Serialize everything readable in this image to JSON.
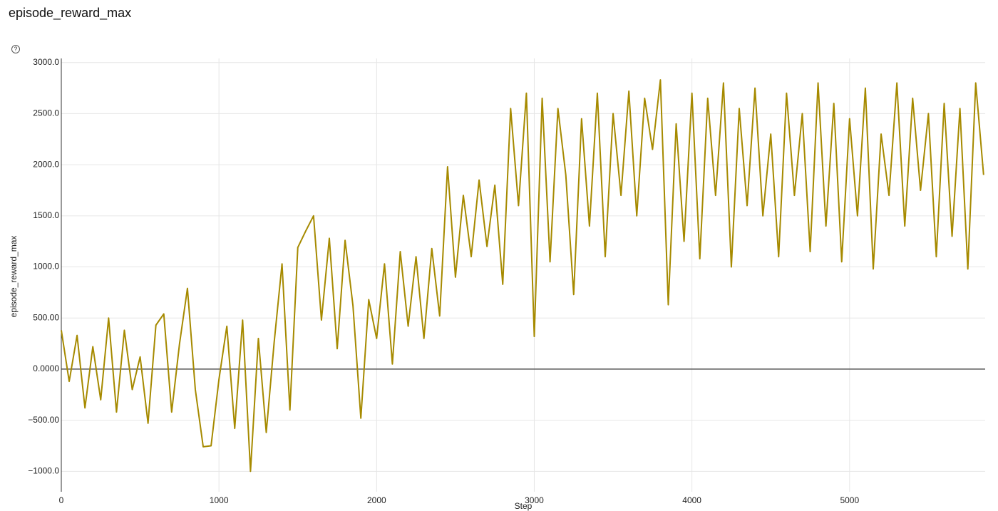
{
  "chart_data": {
    "type": "line",
    "title": "episode_reward_max",
    "x_label": "Step",
    "y_label": "episode_reward_max",
    "color": "#a68a00",
    "grid": true,
    "xlim": [
      0,
      5860
    ],
    "ylim": [
      -1200,
      3040
    ],
    "xticks": [
      0,
      1000,
      2000,
      3000,
      4000,
      5000
    ],
    "yticks": [
      {
        "value": 3000,
        "label": "3000.0"
      },
      {
        "value": 2500,
        "label": "2500.0"
      },
      {
        "value": 2000,
        "label": "2000.0"
      },
      {
        "value": 1500,
        "label": "1500.0"
      },
      {
        "value": 1000,
        "label": "1000.0"
      },
      {
        "value": 500,
        "label": "500.00"
      },
      {
        "value": 0,
        "label": "0.0000"
      },
      {
        "value": -500,
        "label": "−500.00"
      },
      {
        "value": -1000,
        "label": "−1000.0"
      }
    ],
    "x": [
      0,
      50,
      100,
      150,
      200,
      250,
      300,
      350,
      400,
      450,
      500,
      550,
      600,
      650,
      700,
      750,
      800,
      850,
      900,
      950,
      1000,
      1050,
      1100,
      1150,
      1200,
      1250,
      1300,
      1350,
      1400,
      1450,
      1500,
      1550,
      1600,
      1650,
      1700,
      1750,
      1800,
      1850,
      1900,
      1950,
      2000,
      2050,
      2100,
      2150,
      2200,
      2250,
      2300,
      2350,
      2400,
      2450,
      2500,
      2550,
      2600,
      2650,
      2700,
      2750,
      2800,
      2850,
      2900,
      2950,
      3000,
      3050,
      3100,
      3150,
      3200,
      3250,
      3300,
      3350,
      3400,
      3450,
      3500,
      3550,
      3600,
      3650,
      3700,
      3750,
      3800,
      3850,
      3900,
      3950,
      4000,
      4050,
      4100,
      4150,
      4200,
      4250,
      4300,
      4350,
      4400,
      4450,
      4500,
      4550,
      4600,
      4650,
      4700,
      4750,
      4800,
      4850,
      4900,
      4950,
      5000,
      5050,
      5100,
      5150,
      5200,
      5250,
      5300,
      5350,
      5400,
      5450,
      5500,
      5550,
      5600,
      5650,
      5700,
      5750,
      5800,
      5850
    ],
    "values": [
      380,
      -120,
      330,
      -380,
      220,
      -300,
      500,
      -420,
      380,
      -200,
      120,
      -530,
      430,
      540,
      -420,
      250,
      790,
      -200,
      -760,
      -750,
      -100,
      420,
      -580,
      480,
      -1000,
      300,
      -620,
      260,
      1030,
      -400,
      1190,
      1350,
      1500,
      480,
      1280,
      200,
      1260,
      620,
      -480,
      680,
      300,
      1030,
      50,
      1150,
      420,
      1100,
      300,
      1180,
      520,
      1980,
      900,
      1700,
      1100,
      1850,
      1200,
      1800,
      830,
      2550,
      1600,
      2700,
      320,
      2650,
      1050,
      2550,
      1900,
      730,
      2450,
      1400,
      2700,
      1100,
      2500,
      1700,
      2720,
      1500,
      2650,
      2150,
      2830,
      630,
      2400,
      1250,
      2700,
      1080,
      2650,
      1700,
      2800,
      1000,
      2550,
      1600,
      2750,
      1500,
      2300,
      1100,
      2700,
      1700,
      2500,
      1150,
      2800,
      1400,
      2600,
      1050,
      2450,
      1500,
      2750,
      980,
      2300,
      1700,
      2800,
      1400,
      2650,
      1750,
      2500,
      1100,
      2600,
      1300,
      2550,
      980,
      2800,
      1900
    ]
  }
}
